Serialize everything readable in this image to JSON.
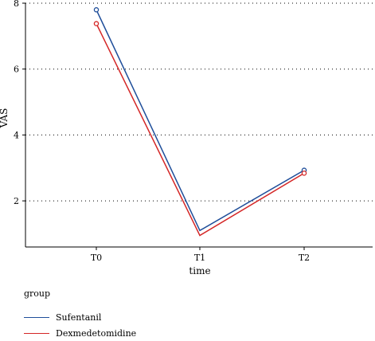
{
  "chart_data": {
    "type": "line",
    "title": "",
    "xlabel": "time",
    "ylabel": "VAS",
    "categories": [
      "T0",
      "T1",
      "T2"
    ],
    "ylim": [
      0.6,
      8.0
    ],
    "yticks": [
      2,
      4,
      6,
      8
    ],
    "grid": "horizontal-dotted",
    "legend_position": "bottom-left",
    "legend_title": "group",
    "series": [
      {
        "name": "Sufentanil",
        "color": "#1f4e9a",
        "values": [
          7.8,
          1.1,
          2.93
        ]
      },
      {
        "name": "Dexmedetomidine",
        "color": "#d42626",
        "values": [
          7.38,
          0.95,
          2.84
        ]
      }
    ]
  }
}
